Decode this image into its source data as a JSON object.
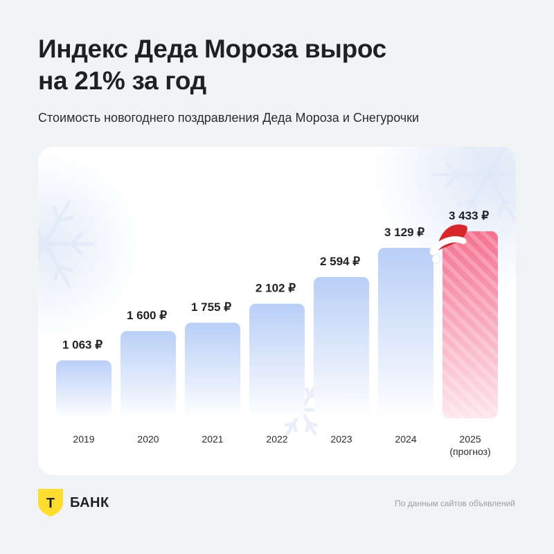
{
  "title_lines": [
    "Индекс Деда Мороза вырос",
    "на 21% за год"
  ],
  "subtitle": "Стоимость новогоднего поздравления Деда Мороза и Снегурочки",
  "colors": {
    "bar_top": "#b9cff7",
    "bar_bottom": "#ffffff",
    "forecast_top": "#f4718f",
    "forecast_bottom": "#fde6ec",
    "logo_yellow": "#ffdd2d",
    "hat_red": "#d8262b"
  },
  "chart_data": {
    "type": "bar",
    "title": "",
    "xlabel": "",
    "ylabel": "",
    "categories": [
      "2019",
      "2020",
      "2021",
      "2022",
      "2023",
      "2024",
      "2025"
    ],
    "category_sublabels": [
      "",
      "",
      "",
      "",
      "",
      "",
      "(прогноз)"
    ],
    "values": [
      1063,
      1600,
      1755,
      2102,
      2594,
      3129,
      3433
    ],
    "value_labels": [
      "1 063 ₽",
      "1 600 ₽",
      "1 755 ₽",
      "2 102 ₽",
      "2 594 ₽",
      "3 129 ₽",
      "3 433 ₽"
    ],
    "forecast_index": 6,
    "ylim": [
      0,
      3433
    ],
    "grid": false,
    "legend": "none"
  },
  "footer": {
    "logo_letter": "Т",
    "logo_text": "БАНК",
    "source": "По данным сайтов объявлений"
  }
}
